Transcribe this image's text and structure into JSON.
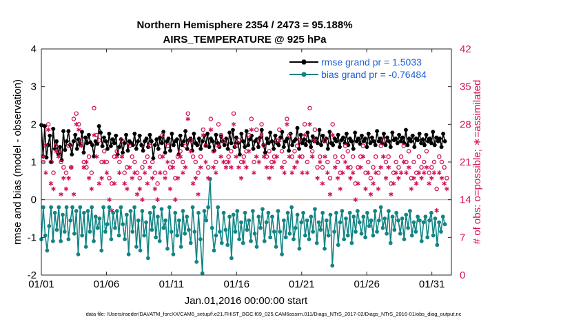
{
  "chart_data": {
    "type": "line",
    "title": "Northern Hemisphere 2354 / 2473 = 95.188%",
    "subtitle": "AIRS_TEMPERATURE @ 925 hPa",
    "xlabel": "Jan.01,2016 00:00:00 start",
    "ylabel": "rmse and bias (model - observation)",
    "ylabel_right": "# of obs: o=possible; ∗=assimilated",
    "xlim": [
      0,
      31.5
    ],
    "ylim": [
      -2,
      4
    ],
    "ylim_right": [
      0,
      42
    ],
    "x_tick_labels": [
      "01/01",
      "01/06",
      "01/11",
      "01/16",
      "01/21",
      "01/26",
      "01/31"
    ],
    "y_tick_labels": [
      "-2",
      "-1",
      "0",
      "1",
      "2",
      "3",
      "4"
    ],
    "y_right_tick_labels": [
      "0",
      "7",
      "14",
      "21",
      "28",
      "35",
      "42"
    ],
    "footer": "data file: /Users/raeder/DAI/ATM_forcXX/CAM6_setup/f.e21.FHIST_BGC.f09_025.CAM6assim.011/Diags_NTrS_2017-02/Diags_NTrS_2016-01/obs_diag_output.nc",
    "series": [
      {
        "name": "rmse grand pr = 1.5033",
        "color": "#000000",
        "marker": "hexagon",
        "values": [
          1.98,
          1.15,
          1.95,
          1.12,
          1.45,
          1.7,
          1.0,
          1.88,
          1.35,
          1.55,
          1.22,
          1.4,
          1.05,
          1.82,
          1.32,
          1.55,
          1.82,
          1.45,
          1.2,
          1.55,
          1.72,
          1.35,
          1.6,
          1.45,
          1.8,
          1.25,
          1.65,
          1.5,
          1.72,
          1.52,
          1.45,
          1.15,
          1.55,
          1.48,
          1.95,
          1.78,
          1.42,
          1.65,
          1.55,
          1.35,
          1.75,
          1.42,
          1.6,
          1.5,
          1.7,
          1.2,
          1.4,
          1.6,
          1.25,
          1.5,
          1.72,
          1.3,
          1.55,
          1.5,
          1.45,
          1.75,
          1.35,
          1.55,
          1.7,
          1.45,
          1.3,
          1.55,
          1.62,
          1.4,
          1.72,
          1.55,
          1.1,
          1.45,
          1.6,
          1.35,
          1.65,
          1.5,
          1.8,
          1.25,
          1.55,
          1.62,
          1.3,
          1.75,
          1.45,
          1.55,
          1.6,
          1.2,
          1.7,
          1.45,
          1.55,
          1.82,
          1.35,
          1.58,
          1.62,
          1.3,
          1.75,
          1.5,
          1.45,
          1.62,
          1.35,
          1.55,
          1.7,
          1.45,
          1.75,
          1.4,
          1.62,
          1.55,
          1.3,
          1.72,
          1.5,
          1.4,
          1.68,
          1.55,
          1.45,
          1.62,
          1.35,
          1.78,
          1.5,
          1.85,
          1.4,
          1.65,
          1.5,
          1.2,
          1.75,
          1.55,
          1.4,
          1.82,
          1.45,
          1.6,
          1.7,
          1.35,
          1.55,
          1.6,
          1.4,
          1.65,
          1.85,
          1.45,
          1.25,
          1.62,
          1.5,
          1.78,
          1.55,
          1.35,
          1.7,
          1.5,
          1.45,
          1.65,
          1.8,
          1.4,
          1.55,
          1.62,
          1.3,
          1.75,
          1.45,
          1.55,
          1.6,
          1.9,
          1.35,
          1.72,
          1.5,
          1.6,
          1.45,
          1.78,
          1.55,
          1.4,
          1.68,
          1.55,
          1.62,
          1.5,
          1.85,
          1.45,
          1.7,
          1.55,
          1.62,
          1.35,
          1.8,
          1.5,
          1.45,
          1.62,
          1.55,
          1.72,
          1.4,
          1.58,
          1.65,
          1.5,
          1.75,
          1.45,
          1.62,
          1.55,
          1.35,
          1.78,
          1.55,
          1.62,
          1.48,
          1.7,
          1.55,
          1.62,
          1.4,
          1.75,
          1.5,
          1.65,
          1.55,
          1.45,
          1.82,
          1.55,
          1.62,
          1.5,
          1.75,
          1.45,
          1.65,
          1.55,
          1.4,
          1.78,
          1.58,
          1.62,
          1.5,
          1.72,
          1.55,
          1.65,
          1.5,
          1.85,
          1.45,
          1.62,
          1.55,
          1.7,
          1.4,
          1.62,
          1.58,
          1.75,
          1.5,
          1.6,
          1.45,
          1.72,
          1.55,
          1.62,
          1.5,
          1.8,
          1.45,
          1.65,
          1.55,
          1.62,
          1.4,
          1.75,
          1.55
        ]
      },
      {
        "name": "bias grand pr = -0.76484",
        "color": "#138484",
        "marker": "circle",
        "values": [
          -1.05,
          -0.2,
          -0.95,
          -1.35,
          -0.7,
          -0.2,
          -1.1,
          -0.35,
          -0.8,
          -0.2,
          -1.1,
          -0.4,
          -0.85,
          -0.2,
          -1.05,
          -0.55,
          -0.2,
          -0.9,
          -0.3,
          -1.45,
          -0.2,
          -0.95,
          -0.35,
          -1.25,
          -0.3,
          -0.85,
          -0.2,
          -1.1,
          -0.45,
          -0.75,
          -0.5,
          -1.35,
          -0.2,
          -0.85,
          -0.65,
          -0.2,
          -1.05,
          -0.35,
          -0.75,
          -0.3,
          -0.95,
          -0.2,
          -0.65,
          -1.05,
          -0.4,
          -1.45,
          -0.3,
          -0.85,
          -0.2,
          -1.25,
          -0.55,
          -1.35,
          -0.3,
          -0.95,
          -0.6,
          -1.55,
          -0.35,
          -0.8,
          -0.2,
          -1.0,
          -0.45,
          -1.1,
          -0.25,
          -0.75,
          -0.55,
          -1.3,
          -0.2,
          -0.85,
          -1.45,
          -0.35,
          -0.95,
          -0.55,
          -1.25,
          -0.3,
          -0.9,
          -0.45,
          -0.8,
          -1.15,
          -0.2,
          -0.85,
          -1.65,
          -0.35,
          -1.05,
          -1.95,
          -0.3,
          -0.55,
          -0.2,
          0.55,
          -0.75,
          -1.35,
          -0.95,
          -0.2,
          -0.85,
          -1.15,
          -0.35,
          -0.8,
          -1.2,
          -0.45,
          -1.55,
          -0.4,
          -0.85,
          -0.3,
          -1.05,
          -0.6,
          -1.15,
          -0.35,
          -0.8,
          -0.55,
          -1.1,
          -0.3,
          -0.9,
          -1.25,
          -0.45,
          -0.75,
          -0.25,
          -1.1,
          -0.6,
          -0.35,
          -1.0,
          -0.45,
          -0.85,
          -1.25,
          -0.3,
          -0.85,
          -1.45,
          -0.55,
          -1.0,
          -0.35,
          -0.9,
          -0.2,
          -1.05,
          -0.75,
          -0.4,
          -1.3,
          -0.6,
          -0.35,
          -0.95,
          -0.55,
          -1.05,
          -0.45,
          -0.85,
          -0.25,
          -1.15,
          -0.6,
          -0.8,
          -0.35,
          -1.3,
          -0.55,
          -0.95,
          -0.4,
          -1.75,
          -0.85,
          -0.35,
          -1.2,
          -0.6,
          -0.3,
          -1.05,
          -0.5,
          -0.95,
          -0.35,
          -1.15,
          -0.45,
          -0.85,
          -0.3,
          -0.6,
          -0.9,
          -0.45,
          -1.0,
          -0.35,
          -0.7,
          -0.55,
          -0.95,
          -0.3,
          -0.85,
          -0.55,
          -0.2,
          -0.75,
          -0.5,
          -0.9,
          -0.3,
          -1.15,
          -0.45,
          -0.8,
          -0.35,
          -0.55,
          -0.9,
          -0.5,
          -1.05,
          -0.4,
          -0.75,
          -0.3,
          -0.95,
          -0.6,
          -0.85,
          -0.45,
          -0.55,
          -1.1,
          -0.6,
          -0.45,
          -1.0,
          -0.55,
          -0.35,
          -0.95,
          -0.5,
          -1.2,
          -0.6,
          -0.85,
          -0.45,
          -0.65
        ]
      }
    ],
    "obs_possible": {
      "name": "possible",
      "marker": "o",
      "color": "#d4145a",
      "values": [
        21,
        24,
        28,
        21,
        19,
        24,
        23,
        21,
        20,
        19,
        24,
        20,
        29,
        30,
        28,
        25,
        21,
        20,
        22,
        19,
        31,
        26,
        25,
        21,
        23,
        21,
        18,
        17,
        22,
        23,
        21,
        25,
        19,
        20,
        24,
        22,
        21,
        19,
        18,
        20,
        21,
        22,
        24,
        21,
        19,
        17,
        22,
        26,
        19,
        24,
        20,
        21,
        18,
        22,
        23,
        21,
        24,
        30,
        25,
        22,
        21,
        19,
        22,
        27,
        24,
        20,
        29,
        23,
        21,
        28,
        26,
        25,
        21,
        22,
        23,
        30,
        24,
        25,
        21,
        22,
        23,
        26,
        29,
        21,
        27,
        25,
        28,
        24,
        22,
        23,
        21,
        22,
        25,
        27,
        23,
        21,
        29,
        26,
        22,
        23,
        24,
        25,
        22,
        28,
        21,
        31,
        23,
        27,
        20,
        22,
        20,
        25,
        21,
        18,
        28,
        22,
        21,
        19,
        22,
        24,
        23,
        20,
        22,
        17,
        20,
        22,
        24,
        19,
        21,
        18,
        20,
        22,
        19,
        24,
        25,
        21,
        22,
        17,
        19,
        21,
        20,
        22,
        24,
        21,
        23,
        18,
        21,
        19,
        22,
        20,
        21,
        23,
        19,
        20,
        21,
        16,
        22,
        21,
        20,
        18
      ]
    },
    "obs_assimilated": {
      "name": "assimilated",
      "marker": "*",
      "color": "#d4145a",
      "values": [
        22,
        19,
        27,
        17,
        16,
        23,
        22,
        15,
        18,
        16,
        18,
        20,
        15,
        28,
        27,
        24,
        20,
        21,
        18,
        16,
        26,
        22,
        17,
        18,
        21,
        19,
        14,
        12,
        17,
        22,
        19,
        22,
        17,
        16,
        20,
        18,
        19,
        15,
        16,
        14,
        19,
        17,
        20,
        18,
        16,
        14,
        19,
        22,
        18,
        21,
        16,
        20,
        14,
        18,
        22,
        19,
        20,
        29,
        23,
        17,
        18,
        15,
        20,
        26,
        21,
        18,
        27,
        20,
        19,
        24,
        22,
        21,
        20,
        21,
        20,
        28,
        22,
        20,
        18,
        21,
        20,
        23,
        27,
        19,
        22,
        21,
        26,
        22,
        20,
        18,
        20,
        21,
        22,
        25,
        20,
        19,
        28,
        22,
        19,
        20,
        21,
        22,
        19,
        26,
        19,
        28,
        22,
        25,
        18,
        21,
        17,
        22,
        19,
        15,
        26,
        20,
        18,
        16,
        19,
        21,
        20,
        18,
        19,
        14,
        17,
        20,
        22,
        16,
        19,
        15,
        17,
        19,
        16,
        20,
        22,
        18,
        20,
        15,
        17,
        19,
        18,
        19,
        21,
        19,
        20,
        16,
        18,
        17,
        19,
        18,
        19,
        20,
        17,
        18,
        19,
        12,
        19,
        18,
        17,
        16
      ]
    }
  }
}
